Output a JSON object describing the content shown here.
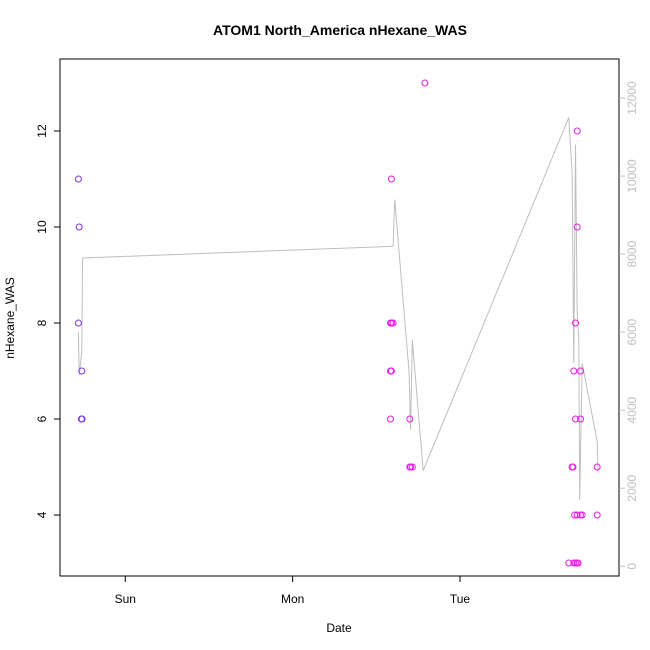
{
  "chart_data": {
    "type": "scatter",
    "title": "ATOM1 North_America nHexane_WAS",
    "xlabel": "Date",
    "ylabel": "nHexane_WAS",
    "x_ticks": [
      {
        "label": "Sun",
        "value": 0.0
      },
      {
        "label": "Mon",
        "value": 1.0
      },
      {
        "label": "Tue",
        "value": 2.0
      }
    ],
    "xlim": [
      -0.39,
      2.95
    ],
    "ylim": [
      2.73,
      13.5
    ],
    "y_ticks": [
      4,
      6,
      8,
      10,
      12
    ],
    "y2lim": [
      -250,
      13000
    ],
    "y2_ticks": [
      0,
      2000,
      4000,
      6000,
      8000,
      10000,
      12000
    ],
    "grid": false,
    "colors": {
      "points_early": "#8a2be2",
      "points_late": "#e81ce8",
      "secondary_line": "#bebebe",
      "right_axis": "#c0c0c0"
    },
    "series": [
      {
        "kind": "points",
        "points": [
          {
            "x": -0.28,
            "y": 11,
            "color": "#7d35e8"
          },
          {
            "x": -0.275,
            "y": 10,
            "color": "#7d35e8"
          },
          {
            "x": -0.28,
            "y": 8,
            "color": "#7d35e8"
          },
          {
            "x": -0.26,
            "y": 7,
            "color": "#7d35e8"
          },
          {
            "x": -0.262,
            "y": 6,
            "color": "#7d35e8"
          },
          {
            "x": -0.258,
            "y": 6,
            "color": "#7d35e8"
          },
          {
            "x": 1.59,
            "y": 11,
            "color": "#e81ce8"
          },
          {
            "x": 1.585,
            "y": 8,
            "color": "#e81ce8"
          },
          {
            "x": 1.592,
            "y": 8,
            "color": "#e81ce8"
          },
          {
            "x": 1.6,
            "y": 8,
            "color": "#e81ce8"
          },
          {
            "x": 1.585,
            "y": 7,
            "color": "#e81ce8"
          },
          {
            "x": 1.59,
            "y": 7,
            "color": "#e81ce8"
          },
          {
            "x": 1.585,
            "y": 6,
            "color": "#e81ce8"
          },
          {
            "x": 1.7,
            "y": 6,
            "color": "#e81ce8"
          },
          {
            "x": 1.7,
            "y": 5,
            "color": "#e81ce8"
          },
          {
            "x": 1.705,
            "y": 5,
            "color": "#e81ce8"
          },
          {
            "x": 1.715,
            "y": 5,
            "color": "#e81ce8"
          },
          {
            "x": 1.79,
            "y": 13,
            "color": "#e81ce8"
          },
          {
            "x": 2.65,
            "y": 3,
            "color": "#e81ce8"
          },
          {
            "x": 2.68,
            "y": 3,
            "color": "#e81ce8"
          },
          {
            "x": 2.69,
            "y": 3,
            "color": "#e81ce8"
          },
          {
            "x": 2.7,
            "y": 3,
            "color": "#e81ce8"
          },
          {
            "x": 2.705,
            "y": 3,
            "color": "#e81ce8"
          },
          {
            "x": 2.685,
            "y": 4,
            "color": "#e81ce8"
          },
          {
            "x": 2.7,
            "y": 4,
            "color": "#e81ce8"
          },
          {
            "x": 2.72,
            "y": 4,
            "color": "#e81ce8"
          },
          {
            "x": 2.73,
            "y": 4,
            "color": "#e81ce8"
          },
          {
            "x": 2.82,
            "y": 4,
            "color": "#e81ce8"
          },
          {
            "x": 2.67,
            "y": 5,
            "color": "#e81ce8"
          },
          {
            "x": 2.675,
            "y": 5,
            "color": "#e81ce8"
          },
          {
            "x": 2.82,
            "y": 5,
            "color": "#e81ce8"
          },
          {
            "x": 2.69,
            "y": 6,
            "color": "#e81ce8"
          },
          {
            "x": 2.72,
            "y": 6,
            "color": "#e81ce8"
          },
          {
            "x": 2.68,
            "y": 7,
            "color": "#e81ce8"
          },
          {
            "x": 2.72,
            "y": 7,
            "color": "#e81ce8"
          },
          {
            "x": 2.69,
            "y": 8,
            "color": "#e81ce8"
          },
          {
            "x": 2.7,
            "y": 10,
            "color": "#e81ce8"
          },
          {
            "x": 2.7,
            "y": 12,
            "color": "#e81ce8"
          }
        ]
      },
      {
        "kind": "line",
        "axis": "right",
        "points": [
          {
            "x": -0.28,
            "y": 6000
          },
          {
            "x": -0.275,
            "y": 4900
          },
          {
            "x": -0.26,
            "y": 5500
          },
          {
            "x": -0.255,
            "y": 7900
          },
          {
            "x": 1.6,
            "y": 8200
          },
          {
            "x": 1.61,
            "y": 9400
          },
          {
            "x": 1.695,
            "y": 5000
          },
          {
            "x": 1.705,
            "y": 3500
          },
          {
            "x": 1.715,
            "y": 5800
          },
          {
            "x": 1.78,
            "y": 2450
          },
          {
            "x": 2.65,
            "y": 11500
          },
          {
            "x": 2.67,
            "y": 10100
          },
          {
            "x": 2.68,
            "y": 5200
          },
          {
            "x": 2.69,
            "y": 10800
          },
          {
            "x": 2.7,
            "y": 6500
          },
          {
            "x": 2.71,
            "y": 5800
          },
          {
            "x": 2.715,
            "y": 1700
          },
          {
            "x": 2.73,
            "y": 5200
          },
          {
            "x": 2.82,
            "y": 3200
          },
          {
            "x": 2.825,
            "y": 2400
          }
        ]
      }
    ]
  }
}
